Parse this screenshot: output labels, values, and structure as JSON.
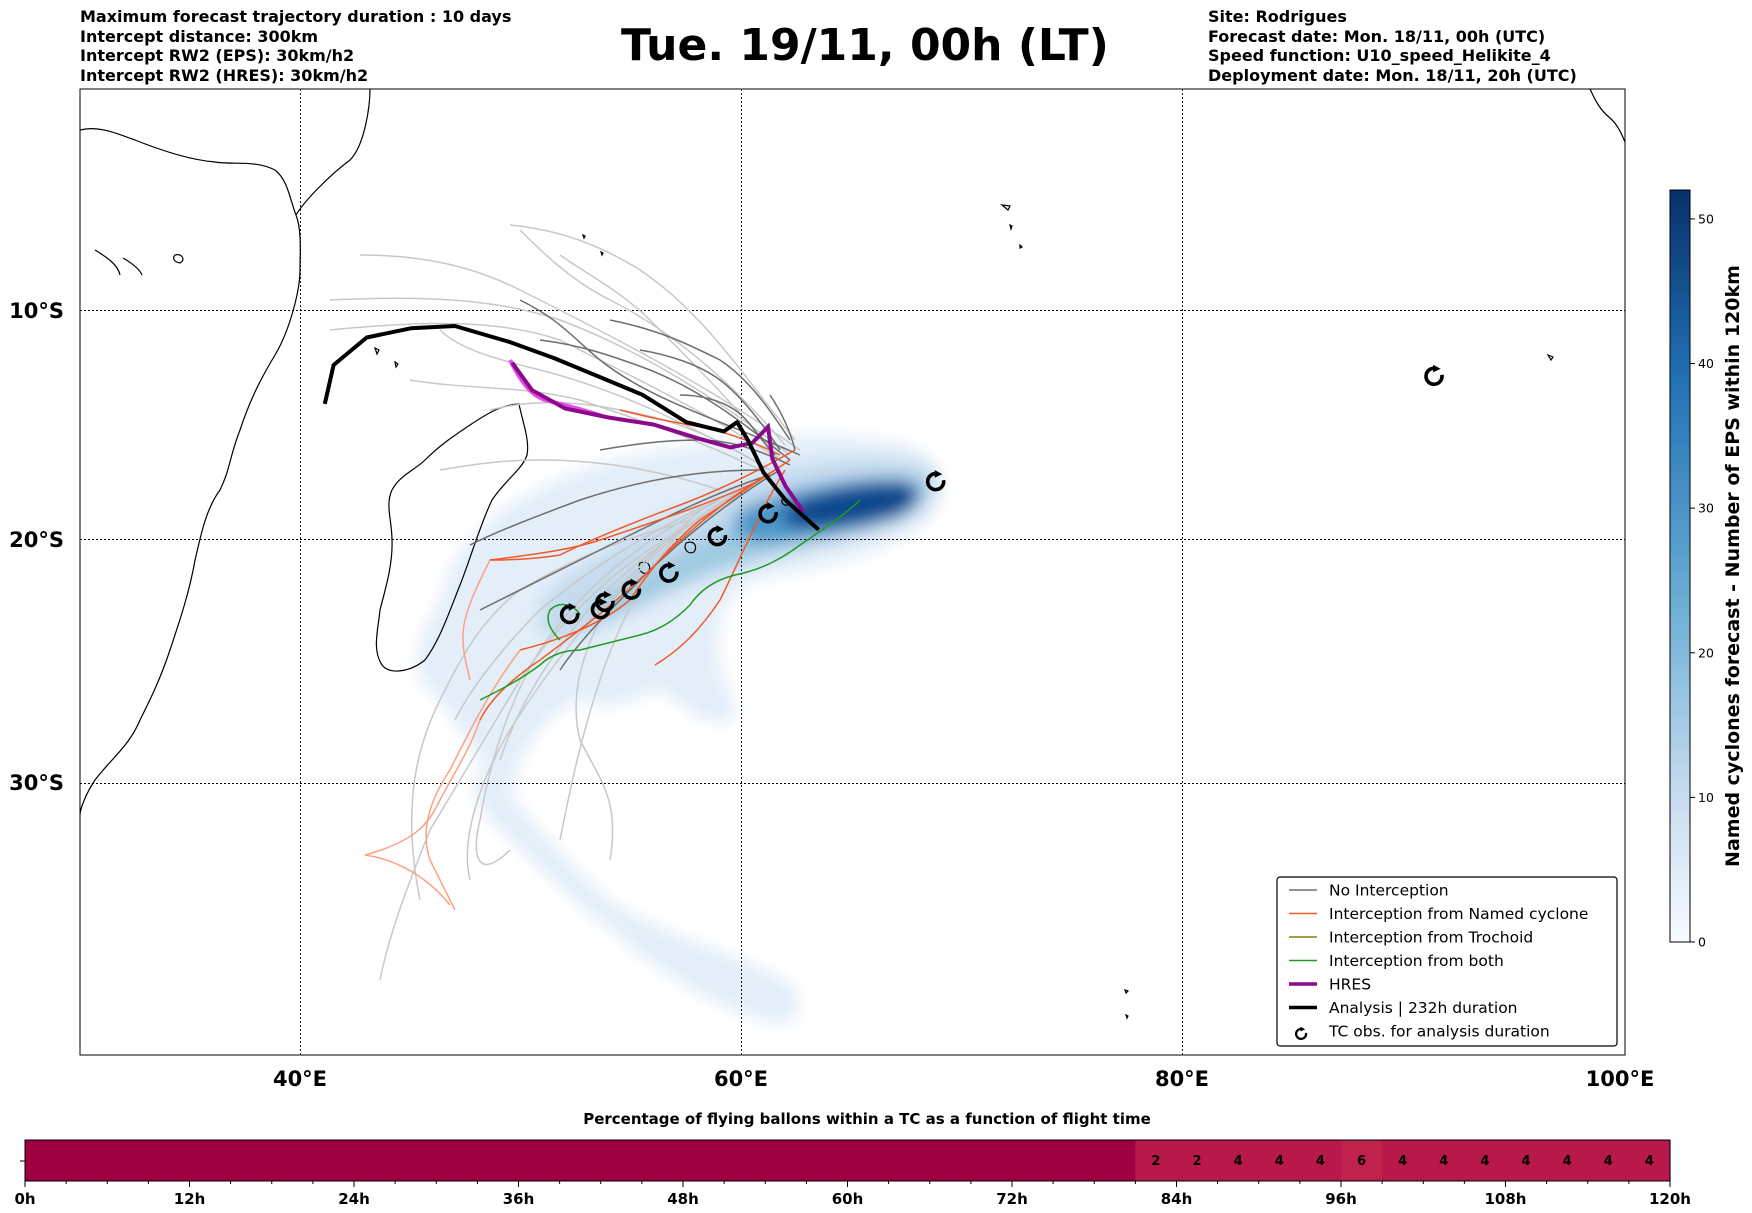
{
  "header": {
    "left": [
      "Maximum forecast trajectory duration : 10 days",
      "Intercept distance: 300km",
      "Intercept RW2 (EPS):  30km/h2",
      "Intercept RW2 (HRES): 30km/h2"
    ],
    "title": "Tue. 19/11, 00h (LT)",
    "right": [
      "Site: Rodrigues",
      "Forecast date: Mon. 18/11, 00h (UTC)",
      "Speed function: U10_speed_Helikite_4",
      "Deployment date: Mon. 18/11, 20h (UTC)"
    ]
  },
  "map": {
    "lon_labels": [
      "40°E",
      "60°E",
      "80°E",
      "100°E"
    ],
    "lat_labels": [
      "10°S",
      "20°S",
      "30°S"
    ],
    "lon_ticks": [
      40,
      60,
      80,
      100
    ],
    "lat_ticks": [
      10,
      20,
      30
    ]
  },
  "legend": {
    "items": [
      {
        "label": "No Interception",
        "color": "#6e6e6e",
        "kind": "line"
      },
      {
        "label": "Interception from Named cyclone",
        "color": "#f05a28",
        "kind": "line"
      },
      {
        "label": "Interception from Trochoid",
        "color": "#808000",
        "kind": "line"
      },
      {
        "label": "Interception from both",
        "color": "#1e9b1e",
        "kind": "line"
      },
      {
        "label": "HRES",
        "color": "#8b0a8b",
        "kind": "thick"
      },
      {
        "label": "Analysis | 232h duration",
        "color": "#000000",
        "kind": "thick"
      },
      {
        "label": "TC obs. for analysis duration",
        "color": "#000000",
        "kind": "tc-symbol"
      }
    ]
  },
  "colorbar": {
    "label": "Named cyclones forecast - Number of EPS within 120km",
    "ticks": [
      "0",
      "10",
      "20",
      "30",
      "40",
      "50"
    ],
    "tick_values": [
      0,
      10,
      20,
      30,
      40,
      50
    ],
    "max": 52,
    "colors": [
      "#f7fbff",
      "#c6dbef",
      "#6baed6",
      "#2171b5",
      "#08306b"
    ]
  },
  "timebar": {
    "title": "Percentage of flying ballons within a TC as a function of flight time",
    "tick_labels": [
      "0h",
      "12h",
      "24h",
      "36h",
      "48h",
      "60h",
      "72h",
      "84h",
      "96h",
      "108h",
      "120h"
    ],
    "cells": [
      "",
      "",
      "",
      "",
      "",
      "",
      "",
      "",
      "",
      "",
      "",
      "",
      "",
      "",
      "",
      "",
      "",
      "",
      "",
      "",
      "",
      "",
      "",
      "",
      "",
      "",
      "",
      "2",
      "2",
      "4",
      "4",
      "4",
      "6",
      "4",
      "4",
      "4",
      "4",
      "4",
      "4",
      "4"
    ],
    "cell_percent": [
      0,
      0,
      0,
      0,
      0,
      0,
      0,
      0,
      0,
      0,
      0,
      0,
      0,
      0,
      0,
      0,
      0,
      0,
      0,
      0,
      0,
      0,
      0,
      0,
      0,
      0,
      0,
      2,
      2,
      4,
      4,
      4,
      6,
      4,
      4,
      4,
      4,
      4,
      4,
      4
    ],
    "base_color": "#9e0142",
    "tint_color": "#b8184a",
    "tint_color_6": "#c0224e"
  },
  "tc_obs": [
    {
      "lon": 52.2,
      "lat": 23.1
    },
    {
      "lon": 53.6,
      "lat": 22.9
    },
    {
      "lon": 53.8,
      "lat": 22.6
    },
    {
      "lon": 55.0,
      "lat": 22.1
    },
    {
      "lon": 56.7,
      "lat": 21.4
    },
    {
      "lon": 58.9,
      "lat": 19.9
    },
    {
      "lon": 61.2,
      "lat": 18.9
    },
    {
      "lon": 68.8,
      "lat": 17.5
    },
    {
      "lon": 91.4,
      "lat": 12.9
    }
  ],
  "analysis_track": [
    [
      41.1,
      14.1
    ],
    [
      41.5,
      12.4
    ],
    [
      43.0,
      11.2
    ],
    [
      45.0,
      10.8
    ],
    [
      47.0,
      10.7
    ],
    [
      49.5,
      11.4
    ],
    [
      51.5,
      12.1
    ],
    [
      53.5,
      12.9
    ],
    [
      55.5,
      13.7
    ],
    [
      57.5,
      14.9
    ],
    [
      59.2,
      15.3
    ],
    [
      59.8,
      14.9
    ],
    [
      60.3,
      15.7
    ],
    [
      61.0,
      17.1
    ],
    [
      62.0,
      18.3
    ],
    [
      63.5,
      19.6
    ]
  ],
  "hres_track": [
    [
      49.6,
      12.3
    ],
    [
      50.5,
      13.5
    ],
    [
      52.0,
      14.3
    ],
    [
      54.0,
      14.7
    ],
    [
      56.0,
      15.0
    ],
    [
      58.0,
      15.6
    ],
    [
      59.5,
      16.0
    ],
    [
      60.5,
      15.8
    ],
    [
      61.2,
      15.1
    ],
    [
      61.4,
      16.5
    ],
    [
      62.0,
      17.7
    ],
    [
      62.8,
      18.8
    ]
  ]
}
